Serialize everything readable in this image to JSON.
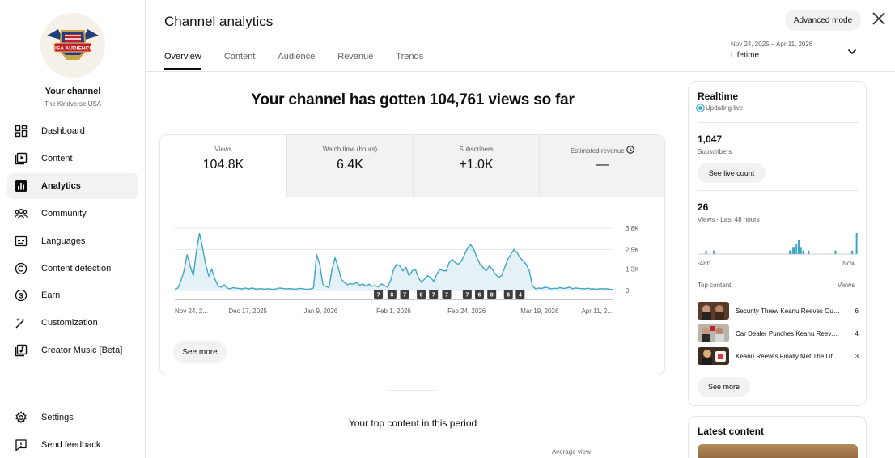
{
  "sidebar": {
    "channel_name": "Your channel",
    "channel_handle": "The Kindverse USA",
    "logo_text": "USA AUDIENCE",
    "items": [
      {
        "label": "Dashboard",
        "icon": "dashboard-icon"
      },
      {
        "label": "Content",
        "icon": "content-icon"
      },
      {
        "label": "Analytics",
        "icon": "analytics-icon",
        "active": true
      },
      {
        "label": "Community",
        "icon": "community-icon"
      },
      {
        "label": "Languages",
        "icon": "languages-icon"
      },
      {
        "label": "Content detection",
        "icon": "copyright-icon"
      },
      {
        "label": "Earn",
        "icon": "dollar-icon"
      },
      {
        "label": "Customization",
        "icon": "magic-wand-icon"
      },
      {
        "label": "Creator Music [Beta]",
        "icon": "music-icon"
      }
    ],
    "bottom_items": [
      {
        "label": "Settings",
        "icon": "gear-icon"
      },
      {
        "label": "Send feedback",
        "icon": "feedback-icon"
      }
    ]
  },
  "header": {
    "title": "Channel analytics",
    "tabs": [
      "Overview",
      "Content",
      "Audience",
      "Revenue",
      "Trends"
    ],
    "active_tab": "Overview",
    "advanced_mode": "Advanced mode",
    "date_range": "Nov 24, 2025 – Apr 11, 2026",
    "period": "Lifetime"
  },
  "main": {
    "headline": "Your channel has gotten 104,761 views so far",
    "metrics": [
      {
        "label": "Views",
        "value": "104.8K"
      },
      {
        "label": "Watch time (hours)",
        "value": "6.4K"
      },
      {
        "label": "Subscribers",
        "value": "+1.0K"
      },
      {
        "label": "Estimated revenue",
        "value": "—"
      }
    ],
    "see_more": "See more",
    "top_content_title": "Your top content in this period",
    "average_view": "Average view"
  },
  "chart_data": {
    "type": "area",
    "title": "",
    "xlabel": "",
    "ylabel": "",
    "color": "#3ea6c7",
    "ylim": [
      0,
      3800
    ],
    "yticks": [
      {
        "value": 0,
        "label": "0"
      },
      {
        "value": 1300,
        "label": "1.3K"
      },
      {
        "value": 2500,
        "label": "2.5K"
      },
      {
        "value": 3800,
        "label": "3.8K"
      }
    ],
    "xtick_labels": [
      "Nov 24, 2...",
      "Dec 17, 2025",
      "Jan 9, 2026",
      "Feb 1, 2026",
      "Feb 24, 2026",
      "Mar 19, 2026",
      "Apr 11, 2..."
    ],
    "x_start": "2025-11-24",
    "x_end": "2026-04-11",
    "values": [
      80,
      150,
      600,
      1200,
      2200,
      1500,
      900,
      2400,
      3500,
      2600,
      1600,
      900,
      1300,
      700,
      300,
      200,
      350,
      150,
      100,
      180,
      140,
      120,
      100,
      150,
      90,
      160,
      100,
      90,
      120,
      80,
      110,
      90,
      70,
      100,
      150,
      130,
      90,
      120,
      100,
      80,
      110,
      130,
      90,
      70,
      100,
      150,
      2200,
      1600,
      400,
      250,
      180,
      1300,
      2000,
      1400,
      700,
      500,
      350,
      420,
      380,
      500,
      320,
      400,
      270,
      380,
      260,
      300,
      220,
      400,
      300,
      200,
      600,
      1300,
      1600,
      1500,
      1200,
      1400,
      900,
      1200,
      1300,
      800,
      500,
      700,
      900,
      800,
      550,
      1000,
      1300,
      1200,
      1200,
      1700,
      1900,
      1700,
      1600,
      1800,
      2200,
      2600,
      2800,
      2500,
      2000,
      1600,
      1400,
      1200,
      1500,
      1300,
      1000,
      800,
      900,
      1400,
      1900,
      2200,
      2500,
      2300,
      2000,
      1800,
      1600,
      1200,
      300,
      100,
      150,
      120,
      200,
      170,
      100,
      140,
      120,
      180,
      130,
      150,
      200,
      110,
      160,
      130,
      120,
      100,
      140,
      90,
      100,
      80,
      120,
      90,
      110,
      80,
      60
    ],
    "markers": [
      {
        "label": "7",
        "position": 0.465
      },
      {
        "label": "8",
        "position": 0.496
      },
      {
        "label": "7",
        "position": 0.525
      },
      {
        "label": "8",
        "position": 0.563
      },
      {
        "label": "7",
        "position": 0.591
      },
      {
        "label": "7",
        "position": 0.621
      },
      {
        "label": "7",
        "position": 0.668
      },
      {
        "label": "6",
        "position": 0.696
      },
      {
        "label": "8",
        "position": 0.724
      },
      {
        "label": "6",
        "position": 0.762
      },
      {
        "label": "4",
        "position": 0.789
      }
    ]
  },
  "realtime": {
    "title": "Realtime",
    "status": "Updating live",
    "subscribers_value": "1,047",
    "subscribers_label": "Subscribers",
    "live_count_button": "See live count",
    "views_value": "26",
    "views_label": "Views · Last 48 hours",
    "bar_left_label": "-48h",
    "bar_right_label": "Now",
    "bars": [
      0,
      0,
      0,
      0,
      0,
      0,
      0,
      1,
      0,
      0,
      0,
      0,
      0,
      0,
      1,
      0,
      0,
      0,
      0,
      0,
      0,
      0,
      0,
      0,
      0,
      0,
      0,
      0,
      0,
      0,
      0,
      0,
      0,
      0,
      0,
      0,
      0,
      0,
      0,
      0,
      0,
      0,
      0,
      0,
      0,
      0,
      0,
      0,
      0,
      0,
      0,
      0,
      0,
      0,
      0,
      0,
      0,
      0,
      0,
      0,
      0,
      0,
      0,
      0,
      0,
      0,
      0,
      0,
      0,
      0,
      0,
      0,
      0,
      0,
      0,
      0,
      0,
      0,
      0,
      0,
      0,
      0,
      1,
      1,
      0,
      2,
      2,
      0,
      3,
      0,
      4,
      0,
      2,
      0,
      1,
      0,
      0,
      0,
      0,
      1,
      0,
      0,
      0,
      0,
      0,
      0,
      0,
      0,
      0,
      0,
      0,
      0,
      0,
      0,
      0,
      0,
      0,
      0,
      0,
      0,
      0,
      0,
      0,
      1,
      0,
      0,
      0,
      0,
      0,
      0,
      0,
      0,
      0,
      0,
      0,
      0,
      0,
      0,
      1,
      0,
      0,
      0,
      6
    ],
    "top_content_label": "Top content",
    "views_column_label": "Views",
    "top_content": [
      {
        "title": "Security Threw Keanu Reeves Out, Unaware He Owns the Building",
        "views": "6"
      },
      {
        "title": "Car Dealer Punches Keanu Reeves, Not Knowing He's the Boss",
        "views": "4"
      },
      {
        "title": "Keanu Reeves Finally Met The Little Girl",
        "views": "3"
      }
    ],
    "see_more": "See more"
  },
  "latest_content": {
    "title": "Latest content"
  }
}
